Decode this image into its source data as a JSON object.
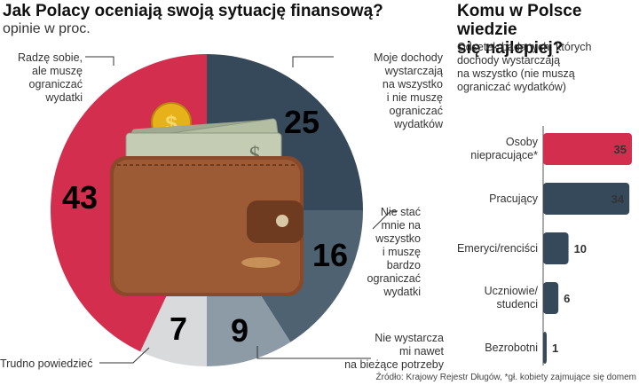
{
  "left": {
    "title": "Jak Polacy oceniają swoją sytuację finansową?",
    "subtitle": "opinie w proc.",
    "labels": {
      "l43": [
        "Radzę sobie,",
        "ale muszę",
        "ograniczać",
        "wydatki"
      ],
      "l25": [
        "Moje dochody",
        "wystarczają",
        "na wszystko",
        "i nie muszę",
        "ograniczać",
        "wydatków"
      ],
      "l16": [
        "Nie stać",
        "mnie na",
        "wszystko",
        "i muszę",
        "bardzo",
        "ograniczać",
        "wydatki"
      ],
      "l9": [
        "Nie wystarcza",
        "mi nawet",
        "na bieżące potrzeby"
      ],
      "l7": [
        "Trudno powiedzieć"
      ]
    }
  },
  "right": {
    "title": [
      "Komu w Polsce wiedzie",
      "się najlepiej?"
    ],
    "subtitle": [
      "Odsetek badanych, których",
      "dochody wystarczają",
      "na wszystko (nie muszą",
      "ograniczać wydatków)"
    ]
  },
  "source": "Źródło: Krajowy Rejestr Długów, *gł. kobiety zajmujące się domem",
  "colors": {
    "red": "#d42e4e",
    "navy": "#36495a",
    "slate": "#4f6272",
    "gray": "#8d9ba6",
    "light": "#d8dadc"
  },
  "chart_data": [
    {
      "type": "pie",
      "title": "Jak Polacy oceniają swoją sytuację finansową?",
      "subtitle": "opinie w proc.",
      "slices": [
        {
          "key": "l25",
          "value": 25,
          "color": "#36495a"
        },
        {
          "key": "l16",
          "value": 16,
          "color": "#4f6272"
        },
        {
          "key": "l9",
          "value": 9,
          "color": "#8d9ba6"
        },
        {
          "key": "l7",
          "value": 7,
          "color": "#d8dadc"
        },
        {
          "key": "l43",
          "value": 43,
          "color": "#d42e4e"
        }
      ]
    },
    {
      "type": "bar",
      "title": "Komu w Polsce wiedzie się najlepiej?",
      "categories": [
        [
          "Osoby",
          "niepracujące*"
        ],
        [
          "Pracujący"
        ],
        [
          "Emeryci/renciści"
        ],
        [
          "Uczniowie/",
          "studenci"
        ],
        [
          "Bezrobotni"
        ]
      ],
      "values": [
        35,
        34,
        10,
        6,
        1
      ],
      "colors": [
        "#d42e4e",
        "#36495a",
        "#36495a",
        "#36495a",
        "#36495a"
      ],
      "xlim": [
        0,
        35
      ]
    }
  ]
}
